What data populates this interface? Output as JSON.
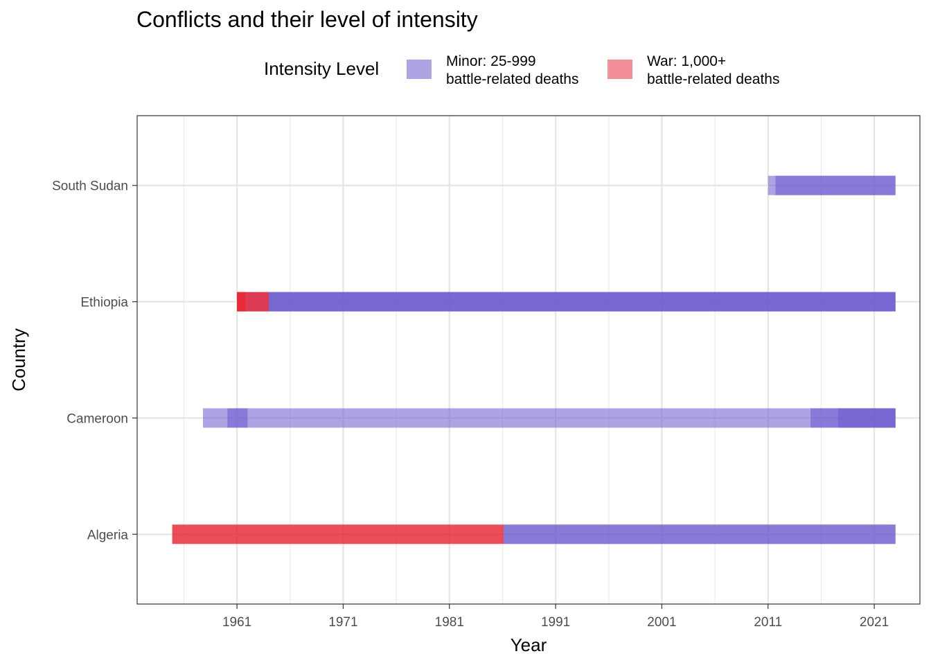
{
  "chart_data": {
    "type": "bar",
    "title": "Conflicts and their level of intensity",
    "xlabel": "Year",
    "ylabel": "Country",
    "xlim": [
      1951.6,
      2025.3
    ],
    "x_ticks": [
      1961,
      1971,
      1981,
      1991,
      2001,
      2011,
      2021
    ],
    "categories": [
      "Algeria",
      "Cameroon",
      "Ethiopia",
      "South Sudan"
    ],
    "grid": true,
    "legend": {
      "title": "Intensity Level",
      "position": "top",
      "items": [
        {
          "key": "minor",
          "label_line1": "Minor: 25-999",
          "label_line2": "battle-related deaths",
          "color": "#6a5acd"
        },
        {
          "key": "war",
          "label_line1": "War: 1,000+",
          "label_line2": "battle-related deaths",
          "color": "#e8202f"
        }
      ]
    },
    "series": [
      {
        "name": "Minor: 25-999 battle-related deaths",
        "color": "#6a5acd",
        "segments": [
          {
            "country": "South Sudan",
            "start": 2011,
            "end": 2023
          },
          {
            "country": "South Sudan",
            "start": 2011.7,
            "end": 2023
          },
          {
            "country": "Ethiopia",
            "start": 1961.8,
            "end": 2023
          },
          {
            "country": "Ethiopia",
            "start": 1964,
            "end": 2023
          },
          {
            "country": "Ethiopia",
            "start": 1964,
            "end": 2023
          },
          {
            "country": "Cameroon",
            "start": 1957.8,
            "end": 2023
          },
          {
            "country": "Cameroon",
            "start": 1960.1,
            "end": 1962
          },
          {
            "country": "Cameroon",
            "start": 2015,
            "end": 2023
          },
          {
            "country": "Cameroon",
            "start": 2017.6,
            "end": 2023
          },
          {
            "country": "Algeria",
            "start": 1986.1,
            "end": 2023
          },
          {
            "country": "Algeria",
            "start": 1986.1,
            "end": 2023
          }
        ]
      },
      {
        "name": "War: 1,000+ battle-related deaths",
        "color": "#e8202f",
        "segments": [
          {
            "country": "Ethiopia",
            "start": 1961,
            "end": 1964
          },
          {
            "country": "Ethiopia",
            "start": 1961,
            "end": 1961.8
          },
          {
            "country": "Algeria",
            "start": 1954.9,
            "end": 1986.1
          }
        ]
      }
    ]
  }
}
